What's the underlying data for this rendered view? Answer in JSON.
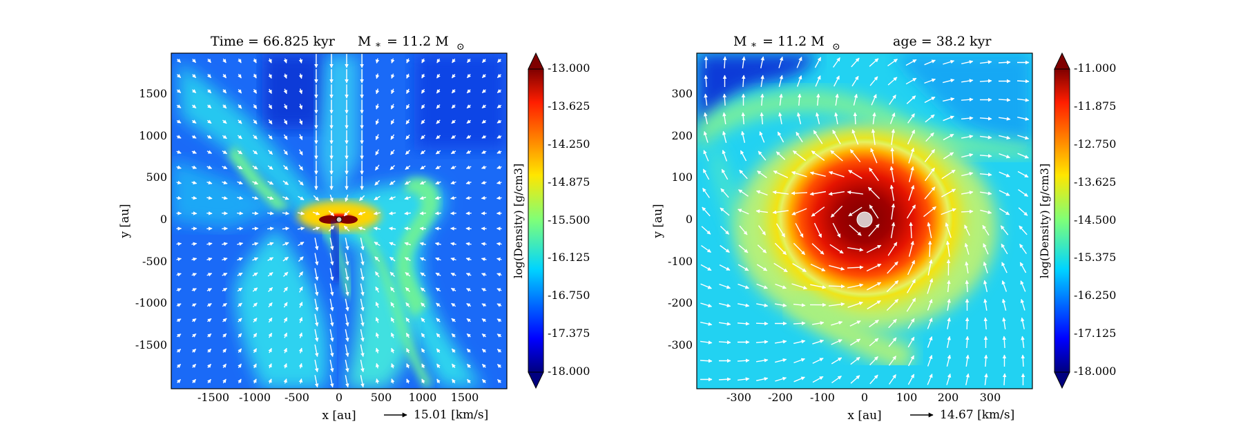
{
  "panels": [
    {
      "title_left": "Time = 66.825 kyr",
      "title_right": "M",
      "title_star_sub": "*",
      "title_mass": "= 11.2 M",
      "title_sun_sub": "⊙",
      "xlabel": "x [au]",
      "ylabel": "y [au]",
      "arrow_legend": "15.01 [km/s]",
      "xticks": [
        "-1500",
        "-1000",
        "-500",
        "0",
        "500",
        "1000",
        "1500"
      ],
      "yticks": [
        "1500",
        "1000",
        "500",
        "0",
        "-500",
        "-1000",
        "-1500"
      ],
      "colorbar_label": "log(Density) [g/cm3]",
      "colorbar_ticks": [
        "-13.000",
        "-13.625",
        "-14.250",
        "-14.875",
        "-15.500",
        "-16.125",
        "-16.750",
        "-17.375",
        "-18.000"
      ]
    },
    {
      "title_left": "M",
      "title_star_sub": "*",
      "title_mass": "= 11.2 M",
      "title_sun_sub": "⊙",
      "title_right": "age = 38.2 kyr",
      "xlabel": "x [au]",
      "ylabel": "y [au]",
      "arrow_legend": "14.67 [km/s]",
      "xticks": [
        "-300",
        "-200",
        "-100",
        "0",
        "100",
        "200",
        "300"
      ],
      "yticks": [
        "300",
        "200",
        "100",
        "0",
        "-100",
        "-200",
        "-300"
      ],
      "colorbar_label": "log(Density) [g/cm3]",
      "colorbar_ticks": [
        "-11.000",
        "-11.875",
        "-12.750",
        "-13.625",
        "-14.500",
        "-15.375",
        "-16.250",
        "-17.125",
        "-18.000"
      ]
    }
  ],
  "chart_data": [
    {
      "type": "heatmap",
      "description_fields": "density map with velocity vectors",
      "xlabel": "x [au]",
      "ylabel": "y [au]",
      "xlim": [
        -2000,
        2000
      ],
      "ylim": [
        -2000,
        2000
      ],
      "xticks": [
        -1500,
        -1000,
        -500,
        0,
        500,
        1000,
        1500
      ],
      "yticks": [
        -1500,
        -1000,
        -500,
        0,
        500,
        1000,
        1500
      ],
      "colorbar": {
        "label": "log(Density) [g/cm3]",
        "min": -18.0,
        "max": -13.0,
        "ticks": [
          -13.0,
          -13.625,
          -14.25,
          -14.875,
          -15.5,
          -16.125,
          -16.75,
          -17.375,
          -18.0
        ],
        "extend": "both",
        "colormap": "jet"
      },
      "velocity_reference": {
        "value": 15.01,
        "unit": "[km/s]"
      },
      "annotations": {
        "time": "66.825 kyr",
        "stellar_mass": "11.2"
      }
    },
    {
      "type": "heatmap",
      "xlabel": "x [au]",
      "ylabel": "y [au]",
      "xlim": [
        -400,
        400
      ],
      "ylim": [
        -400,
        400
      ],
      "xticks": [
        -300,
        -200,
        -100,
        0,
        100,
        200,
        300
      ],
      "yticks": [
        -300,
        -200,
        -100,
        0,
        100,
        200,
        300
      ],
      "colorbar": {
        "label": "log(Density) [g/cm3]",
        "min": -18.0,
        "max": -11.0,
        "ticks": [
          -11.0,
          -11.875,
          -12.75,
          -13.625,
          -14.5,
          -15.375,
          -16.25,
          -17.125,
          -18.0
        ],
        "extend": "both",
        "colormap": "jet"
      },
      "velocity_reference": {
        "value": 14.67,
        "unit": "[km/s]"
      },
      "annotations": {
        "age": "38.2 kyr",
        "stellar_mass": "11.2"
      }
    }
  ]
}
